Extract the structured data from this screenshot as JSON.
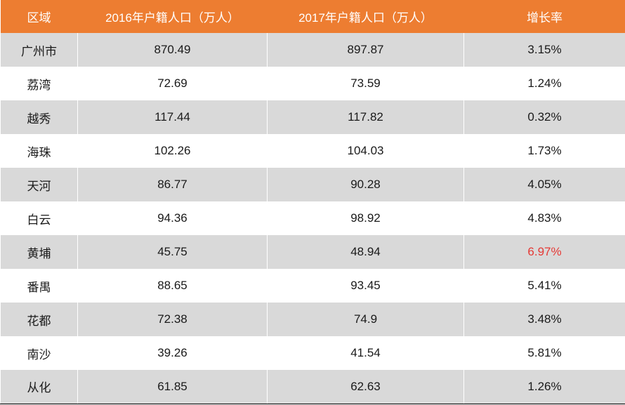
{
  "table": {
    "header_bg": "#ed7d31",
    "header_text_color": "#ffffff",
    "row_alt_bg": "#d9d9d9",
    "row_bg": "#ffffff",
    "cell_text_color": "#1a1a1a",
    "highlight_color": "#e53935",
    "columns": [
      "区域",
      "2016年户籍人口（万人）",
      "2017年户籍人口（万人）",
      "增长率"
    ],
    "rows": [
      {
        "region": "广州市",
        "p2016": "870.49",
        "p2017": "897.87",
        "growth": "3.15%",
        "highlight": false
      },
      {
        "region": "荔湾",
        "p2016": "72.69",
        "p2017": "73.59",
        "growth": "1.24%",
        "highlight": false
      },
      {
        "region": "越秀",
        "p2016": "117.44",
        "p2017": "117.82",
        "growth": "0.32%",
        "highlight": false
      },
      {
        "region": "海珠",
        "p2016": "102.26",
        "p2017": "104.03",
        "growth": "1.73%",
        "highlight": false
      },
      {
        "region": "天河",
        "p2016": "86.77",
        "p2017": "90.28",
        "growth": "4.05%",
        "highlight": false
      },
      {
        "region": "白云",
        "p2016": "94.36",
        "p2017": "98.92",
        "growth": "4.83%",
        "highlight": false
      },
      {
        "region": "黄埔",
        "p2016": "45.75",
        "p2017": "48.94",
        "growth": "6.97%",
        "highlight": true
      },
      {
        "region": "番禺",
        "p2016": "88.65",
        "p2017": "93.45",
        "growth": "5.41%",
        "highlight": false
      },
      {
        "region": "花都",
        "p2016": "72.38",
        "p2017": "74.9",
        "growth": "3.48%",
        "highlight": false
      },
      {
        "region": "南沙",
        "p2016": "39.26",
        "p2017": "41.54",
        "growth": "5.81%",
        "highlight": false
      },
      {
        "region": "从化",
        "p2016": "61.85",
        "p2017": "62.63",
        "growth": "1.26%",
        "highlight": false
      }
    ]
  }
}
